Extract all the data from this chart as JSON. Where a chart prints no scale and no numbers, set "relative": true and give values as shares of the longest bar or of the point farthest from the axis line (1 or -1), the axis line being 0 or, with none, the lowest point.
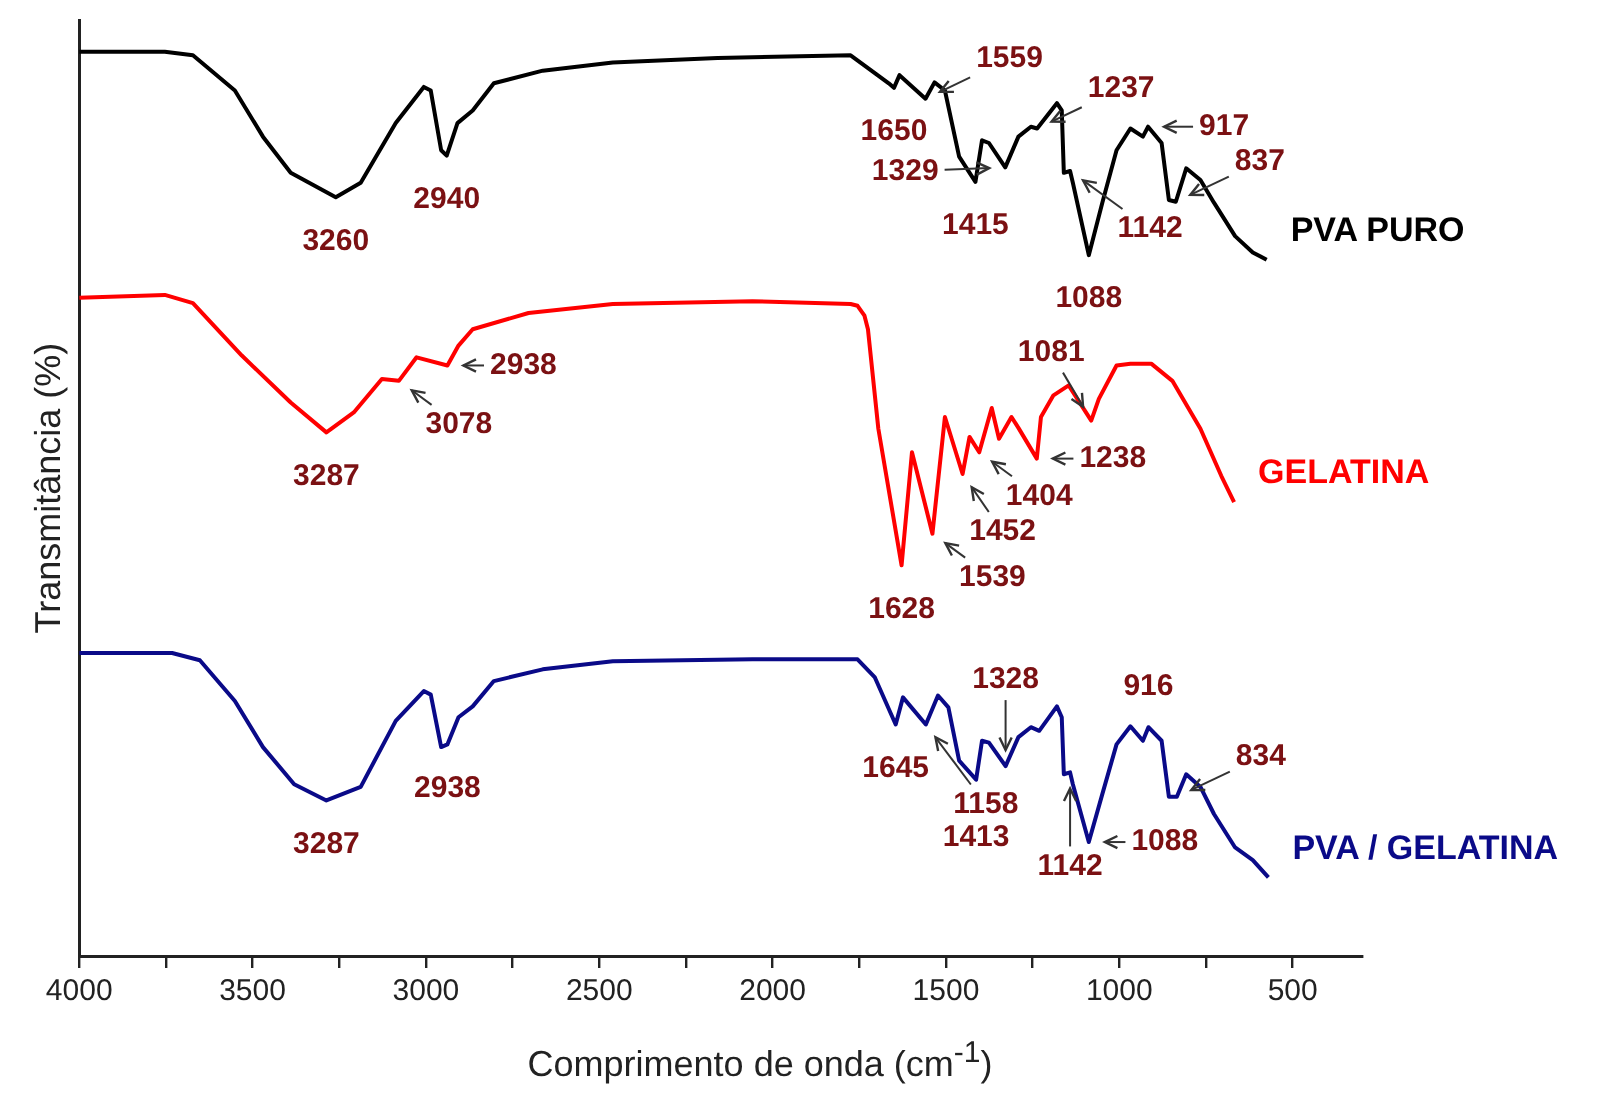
{
  "chart_data": {
    "type": "line",
    "relative": true,
    "xlabel": "Comprimento de onda (cm$^{-1}$)",
    "ylabel": "Transmitância (%)",
    "xlim": [
      4000,
      300
    ],
    "xticks": [
      4000,
      {
        "value": 3750,
        "label": null
      },
      3500,
      {
        "value": 3250,
        "label": null
      },
      3000,
      {
        "value": 2750,
        "label": null
      },
      2500,
      {
        "value": 2250,
        "label": null
      },
      2000,
      {
        "value": 1750,
        "label": null
      },
      1500,
      {
        "value": 1250,
        "label": null
      },
      1000,
      {
        "value": 750,
        "label": null
      },
      500
    ],
    "tick_labels": "x",
    "grid": false,
    "legend": false,
    "marker": "none",
    "series": [
      {
        "name": "PVA PURO",
        "color": "#000000",
        "x": [
          4000,
          3753,
          3672,
          3551,
          3470,
          3390,
          3260,
          3188,
          3087,
          3006,
          2986,
          2956,
          2940,
          2909,
          2865,
          2804,
          2663,
          2461,
          2159,
          1775,
          1715,
          1665,
          1650,
          1634,
          1559,
          1533,
          1503,
          1462,
          1415,
          1396,
          1376,
          1329,
          1291,
          1255,
          1237,
          1180,
          1166,
          1160,
          1142,
          1134,
          1088,
          1049,
          1008,
          968,
          932,
          917,
          878,
          857,
          837,
          807,
          766,
          727,
          666,
          615,
          575
        ],
        "values": [
          1,
          1,
          0.996,
          0.957,
          0.906,
          0.866,
          0.839,
          0.855,
          0.921,
          0.961,
          0.957,
          0.891,
          0.885,
          0.921,
          0.935,
          0.965,
          0.979,
          0.988,
          0.993,
          0.996,
          0.979,
          0.965,
          0.96,
          0.974,
          0.948,
          0.966,
          0.957,
          0.884,
          0.856,
          0.902,
          0.899,
          0.872,
          0.906,
          0.917,
          0.915,
          0.943,
          0.935,
          0.866,
          0.868,
          0.855,
          0.775,
          0.833,
          0.891,
          0.915,
          0.906,
          0.917,
          0.899,
          0.836,
          0.834,
          0.871,
          0.858,
          0.833,
          0.796,
          0.778,
          0.77
        ]
      },
      {
        "name": "GELATINA",
        "color": "#ff0000",
        "x": [
          4000,
          3753,
          3672,
          3531,
          3390,
          3287,
          3208,
          3127,
          3078,
          3027,
          2938,
          2906,
          2865,
          2704,
          2461,
          2058,
          1775,
          1755,
          1735,
          1725,
          1695,
          1628,
          1598,
          1539,
          1503,
          1452,
          1432,
          1404,
          1368,
          1347,
          1311,
          1291,
          1238,
          1226,
          1190,
          1146,
          1081,
          1059,
          1008,
          968,
          908,
          847,
          766,
          706,
          669
        ],
        "values": [
          0.728,
          0.731,
          0.722,
          0.664,
          0.612,
          0.579,
          0.601,
          0.638,
          0.636,
          0.662,
          0.653,
          0.675,
          0.693,
          0.711,
          0.721,
          0.724,
          0.721,
          0.719,
          0.708,
          0.693,
          0.583,
          0.432,
          0.557,
          0.467,
          0.596,
          0.533,
          0.574,
          0.557,
          0.606,
          0.572,
          0.596,
          0.584,
          0.55,
          0.596,
          0.62,
          0.631,
          0.592,
          0.616,
          0.653,
          0.655,
          0.655,
          0.636,
          0.583,
          0.531,
          0.502
        ]
      },
      {
        "name": "PVA / GELATINA",
        "color": "#0a0a88",
        "x": [
          4000,
          3732,
          3652,
          3551,
          3470,
          3380,
          3287,
          3188,
          3087,
          3006,
          2986,
          2956,
          2938,
          2906,
          2865,
          2804,
          2663,
          2461,
          2058,
          1755,
          1705,
          1645,
          1624,
          1558,
          1523,
          1493,
          1462,
          1413,
          1396,
          1376,
          1328,
          1291,
          1255,
          1231,
          1180,
          1166,
          1160,
          1142,
          1134,
          1088,
          1049,
          1008,
          968,
          932,
          916,
          878,
          857,
          834,
          807,
          766,
          727,
          666,
          615,
          570
        ],
        "values": [
          0.335,
          0.335,
          0.327,
          0.282,
          0.231,
          0.19,
          0.172,
          0.187,
          0.26,
          0.293,
          0.289,
          0.231,
          0.234,
          0.264,
          0.276,
          0.304,
          0.317,
          0.326,
          0.328,
          0.328,
          0.308,
          0.256,
          0.286,
          0.256,
          0.288,
          0.275,
          0.216,
          0.195,
          0.238,
          0.236,
          0.21,
          0.242,
          0.253,
          0.249,
          0.276,
          0.264,
          0.201,
          0.203,
          0.19,
          0.126,
          0.179,
          0.234,
          0.254,
          0.238,
          0.253,
          0.238,
          0.176,
          0.176,
          0.201,
          0.187,
          0.157,
          0.12,
          0.106,
          0.087
        ]
      }
    ],
    "annotations": [
      {
        "text": "3260",
        "x": 3260,
        "y": 0.839
      },
      {
        "text": "2940",
        "x": 2940,
        "y": 0.885
      },
      {
        "text": "1650",
        "x": 1650,
        "y": 0.96
      },
      {
        "text": "1559",
        "x": 1559,
        "y": 0.948
      },
      {
        "text": "1415",
        "x": 1415,
        "y": 0.856
      },
      {
        "text": "1329",
        "x": 1329,
        "y": 0.872
      },
      {
        "text": "1237",
        "x": 1237,
        "y": 0.915
      },
      {
        "text": "1142",
        "x": 1142,
        "y": 0.868
      },
      {
        "text": "1088",
        "x": 1088,
        "y": 0.775
      },
      {
        "text": "917",
        "x": 917,
        "y": 0.917
      },
      {
        "text": "837",
        "x": 837,
        "y": 0.834
      },
      {
        "text": "3287",
        "x": 3287,
        "y": 0.579
      },
      {
        "text": "3078",
        "x": 3078,
        "y": 0.636
      },
      {
        "text": "2938",
        "x": 2938,
        "y": 0.653
      },
      {
        "text": "1404",
        "x": 1404,
        "y": 0.557
      },
      {
        "text": "1628",
        "x": 1628,
        "y": 0.432
      },
      {
        "text": "1539",
        "x": 1539,
        "y": 0.467
      },
      {
        "text": "1452",
        "x": 1452,
        "y": 0.533
      },
      {
        "text": "1238",
        "x": 1238,
        "y": 0.55
      },
      {
        "text": "1081",
        "x": 1081,
        "y": 0.592
      },
      {
        "text": "3287",
        "x": 3287,
        "y": 0.172
      },
      {
        "text": "2938",
        "x": 2938,
        "y": 0.234
      },
      {
        "text": "1645",
        "x": 1645,
        "y": 0.256
      },
      {
        "text": "1158",
        "x": 1558,
        "y": 0.256
      },
      {
        "text": "1413",
        "x": 1413,
        "y": 0.195
      },
      {
        "text": "1328",
        "x": 1328,
        "y": 0.21
      },
      {
        "text": "1142",
        "x": 1142,
        "y": 0.203
      },
      {
        "text": "1088",
        "x": 1088,
        "y": 0.126
      },
      {
        "text": "916",
        "x": 916,
        "y": 0.253
      },
      {
        "text": "834",
        "x": 834,
        "y": 0.176
      }
    ]
  }
}
